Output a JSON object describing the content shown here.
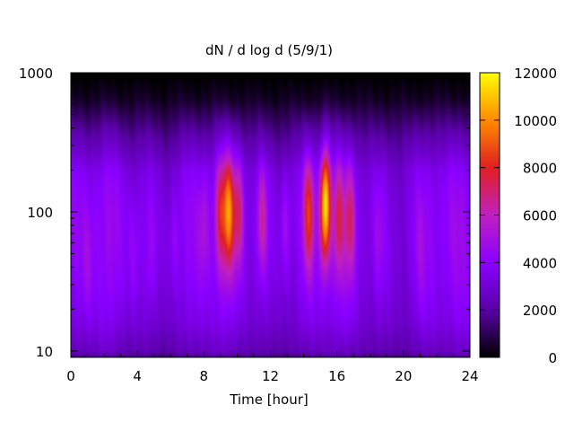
{
  "chart_data": {
    "type": "heatmap",
    "title": "dN / d log d (5/9/1)",
    "xlabel": "Time [hour]",
    "ylabel": "",
    "x_range": [
      0,
      24
    ],
    "x_ticks": [
      0,
      4,
      8,
      12,
      16,
      20,
      24
    ],
    "y_scale": "log",
    "y_range": [
      9,
      1000
    ],
    "y_ticks": [
      10,
      100,
      1000
    ],
    "data_y_range": [
      9.2,
      900
    ],
    "colorbar": {
      "palette": "gnuplot-hot",
      "range": [
        0,
        12000
      ],
      "ticks": [
        0,
        2000,
        4000,
        6000,
        8000,
        10000,
        12000
      ],
      "colors": [
        "#000000",
        "#5a00a8",
        "#8a00ff",
        "#c020c0",
        "#e02020",
        "#ff8c00",
        "#ffff00"
      ]
    },
    "baseline_profile": {
      "log_d": [
        0.96,
        1.0,
        1.2,
        1.5,
        1.8,
        2.0,
        2.15,
        2.3,
        2.4,
        2.55,
        2.7,
        2.8,
        2.954
      ],
      "dN": [
        1800,
        2400,
        3200,
        3700,
        3900,
        3850,
        3700,
        3400,
        2800,
        2000,
        1100,
        500,
        200
      ]
    },
    "bursts": [
      {
        "time": 1.0,
        "peak_log_d": 1.6,
        "amplitude": 800
      },
      {
        "time": 3.8,
        "peak_log_d": 1.7,
        "amplitude": 900
      },
      {
        "time": 4.8,
        "peak_log_d": 1.7,
        "amplitude": 700
      },
      {
        "time": 6.2,
        "peak_log_d": 1.8,
        "amplitude": 900
      },
      {
        "time": 8.0,
        "peak_log_d": 1.9,
        "amplitude": 1200
      },
      {
        "time": 9.0,
        "peak_log_d": 2.0,
        "amplitude": 3500
      },
      {
        "time": 9.5,
        "peak_log_d": 2.0,
        "amplitude": 5500
      },
      {
        "time": 10.1,
        "peak_log_d": 2.0,
        "amplitude": 3200
      },
      {
        "time": 11.5,
        "peak_log_d": 1.95,
        "amplitude": 2600
      },
      {
        "time": 12.9,
        "peak_log_d": 1.9,
        "amplitude": 1500
      },
      {
        "time": 14.3,
        "peak_log_d": 2.0,
        "amplitude": 4200
      },
      {
        "time": 15.3,
        "peak_log_d": 2.05,
        "amplitude": 7800
      },
      {
        "time": 16.1,
        "peak_log_d": 1.95,
        "amplitude": 3000
      },
      {
        "time": 16.8,
        "peak_log_d": 1.95,
        "amplitude": 3000
      },
      {
        "time": 18.5,
        "peak_log_d": 1.8,
        "amplitude": 900
      },
      {
        "time": 21.0,
        "peak_log_d": 1.7,
        "amplitude": 600
      }
    ]
  }
}
